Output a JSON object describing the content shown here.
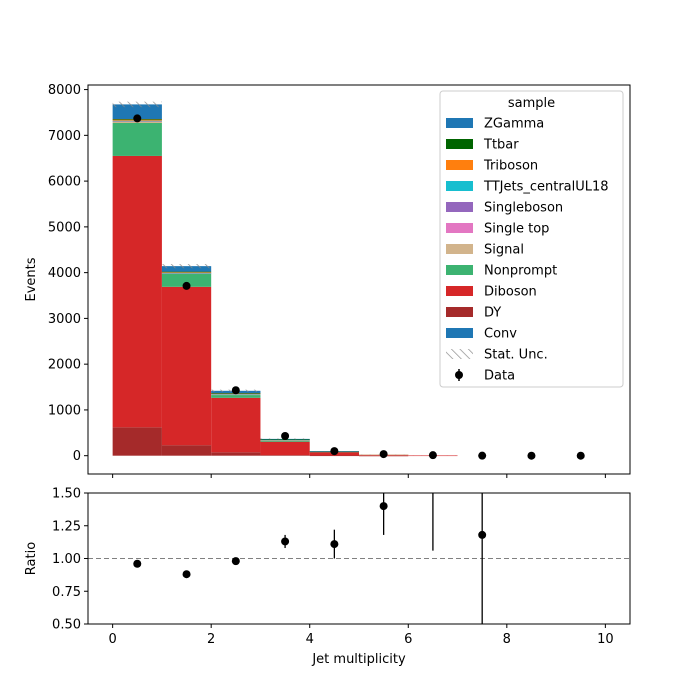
{
  "chart_data": [
    {
      "type": "bar",
      "stacked": true,
      "ylabel": "Events",
      "xlim": [
        -0.5,
        10.5
      ],
      "ylim": [
        -400,
        8100
      ],
      "yticks": [
        0,
        1000,
        2000,
        3000,
        4000,
        5000,
        6000,
        7000,
        8000
      ],
      "bin_edges": [
        0,
        1,
        2,
        3,
        4,
        5,
        6,
        7,
        8,
        9,
        10
      ],
      "series": [
        {
          "name": "DY",
          "color": "#a52a2a",
          "values": [
            620,
            230,
            75,
            15,
            5,
            1,
            0,
            0,
            0,
            0
          ]
        },
        {
          "name": "Diboson",
          "color": "#d62728",
          "values": [
            5930,
            3460,
            1190,
            290,
            80,
            22,
            5,
            0,
            0,
            0
          ]
        },
        {
          "name": "Nonprompt",
          "color": "#3cb371",
          "values": [
            720,
            280,
            60,
            20,
            3,
            0,
            0,
            0,
            0,
            0
          ]
        },
        {
          "name": "Signal",
          "color": "#d2b48c",
          "values": [
            40,
            20,
            25,
            20,
            5,
            1,
            0,
            0,
            0,
            0
          ]
        },
        {
          "name": "Single top",
          "color": "#e377c2",
          "values": [
            3,
            2,
            2,
            1,
            0,
            0,
            0,
            0,
            0,
            0
          ]
        },
        {
          "name": "Singleboson",
          "color": "#9467bd",
          "values": [
            3,
            2,
            1,
            1,
            0,
            0,
            0,
            0,
            0,
            0
          ]
        },
        {
          "name": "TTJets_centralUL18",
          "color": "#17becf",
          "values": [
            5,
            3,
            2,
            1,
            0,
            0,
            0,
            0,
            0,
            0
          ]
        },
        {
          "name": "Triboson",
          "color": "#ff7f0e",
          "values": [
            30,
            20,
            10,
            5,
            1,
            0,
            0,
            0,
            0,
            0
          ]
        },
        {
          "name": "Ttbar",
          "color": "#006400",
          "values": [
            5,
            5,
            3,
            2,
            1,
            0,
            0,
            0,
            0,
            0
          ]
        },
        {
          "name": "ZGamma",
          "color": "#1f77b4",
          "values": [
            320,
            120,
            50,
            12,
            3,
            0,
            0,
            0,
            0,
            0
          ]
        },
        {
          "name": "Conv",
          "color": "#1f77b4",
          "values": [
            0,
            0,
            0,
            0,
            0,
            0,
            0,
            0,
            0,
            0
          ]
        }
      ],
      "stat_unc": [
        60,
        45,
        25,
        10,
        5,
        3,
        1,
        0,
        0,
        0
      ],
      "data": {
        "name": "Data",
        "x": [
          0.5,
          1.5,
          2.5,
          3.5,
          4.5,
          5.5,
          6.5,
          7.5,
          8.5,
          9.5
        ],
        "y": [
          7370,
          3710,
          1430,
          430,
          100,
          35,
          12,
          1,
          0,
          0
        ]
      },
      "legend": {
        "title": "sample",
        "placement": "top-right",
        "entries": [
          "ZGamma",
          "Ttbar",
          "Triboson",
          "TTJets_centralUL18",
          "Singleboson",
          "Single top",
          "Signal",
          "Nonprompt",
          "Diboson",
          "DY",
          "Conv",
          "Stat. Unc.",
          "Data"
        ],
        "colors": [
          "#1f77b4",
          "#006400",
          "#ff7f0e",
          "#17becf",
          "#9467bd",
          "#e377c2",
          "#d2b48c",
          "#3cb371",
          "#d62728",
          "#a52a2a",
          "#1f77b4",
          "hatch",
          "marker"
        ]
      }
    },
    {
      "type": "scatter",
      "xlabel": "Jet multiplicity",
      "ylabel": "Ratio",
      "xlim": [
        -0.5,
        10.5
      ],
      "ylim": [
        0.5,
        1.5
      ],
      "xticks": [
        0,
        2,
        4,
        6,
        8,
        10
      ],
      "yticks": [
        0.5,
        0.75,
        1.0,
        1.25,
        1.5
      ],
      "ytick_labels": [
        "0.50",
        "0.75",
        "1.00",
        "1.25",
        "1.50"
      ],
      "reference_line": 1.0,
      "points": [
        {
          "x": 0.5,
          "y": 0.96,
          "err_low": 0.01,
          "err_high": 0.01
        },
        {
          "x": 1.5,
          "y": 0.88,
          "err_low": 0.01,
          "err_high": 0.01
        },
        {
          "x": 2.5,
          "y": 0.98,
          "err_low": 0.02,
          "err_high": 0.02
        },
        {
          "x": 3.5,
          "y": 1.13,
          "err_low": 0.05,
          "err_high": 0.05
        },
        {
          "x": 4.5,
          "y": 1.11,
          "err_low": 0.11,
          "err_high": 0.11
        },
        {
          "x": 5.5,
          "y": 1.4,
          "err_low": 0.22,
          "err_high": 0.22
        },
        {
          "x": 6.5,
          "y": null,
          "err_low": null,
          "err_high": null,
          "bar_from": 1.06,
          "bar_to": 1.5
        },
        {
          "x": 7.5,
          "y": 1.18,
          "err_low": 0.68,
          "err_high": 0.5
        }
      ]
    }
  ]
}
